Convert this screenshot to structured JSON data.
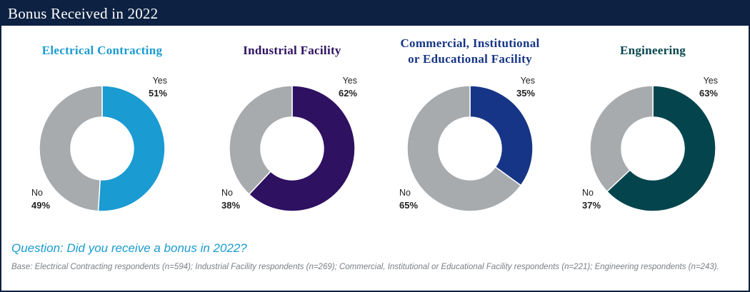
{
  "header": {
    "title": "Bonus Received in 2022"
  },
  "chart_data": [
    {
      "type": "pie",
      "title": "Electrical Contracting",
      "title_color": "#1a9bd1",
      "categories": [
        "Yes",
        "No"
      ],
      "values": [
        51,
        49
      ],
      "value_labels": [
        "51%",
        "49%"
      ],
      "colors": [
        "#1a9bd1",
        "#a7abae"
      ]
    },
    {
      "type": "pie",
      "title": "Industrial Facility",
      "title_color": "#2e1161",
      "categories": [
        "Yes",
        "No"
      ],
      "values": [
        62,
        38
      ],
      "value_labels": [
        "62%",
        "38%"
      ],
      "colors": [
        "#2e1161",
        "#a7abae"
      ]
    },
    {
      "type": "pie",
      "title": "Commercial, Institutional or Educational Facility",
      "title_lines": [
        "Commercial, Institutional",
        "or Educational Facility"
      ],
      "title_color": "#163586",
      "categories": [
        "Yes",
        "No"
      ],
      "values": [
        35,
        65
      ],
      "value_labels": [
        "35%",
        "65%"
      ],
      "colors": [
        "#163586",
        "#a7abae"
      ]
    },
    {
      "type": "pie",
      "title": "Engineering",
      "title_color": "#04454d",
      "categories": [
        "Yes",
        "No"
      ],
      "values": [
        63,
        37
      ],
      "value_labels": [
        "63%",
        "37%"
      ],
      "colors": [
        "#04454d",
        "#a7abae"
      ]
    }
  ],
  "footer": {
    "question": "Question: Did you receive a bonus in 2022?",
    "base": "Base: Electrical Contracting respondents (n=594); Industrial Facility respondents (n=269); Commercial, Institutional or Educational Facility respondents (n=221); Engineering respondents (n=243)."
  }
}
